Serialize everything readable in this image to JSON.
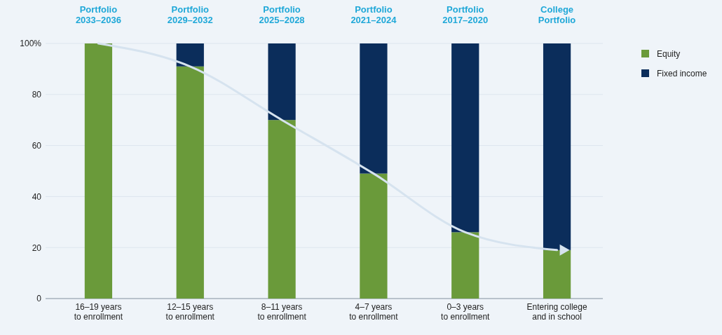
{
  "chart_data": {
    "type": "bar",
    "stacked": true,
    "categories": [
      "16–19 years\nto enrollment",
      "12–15 years\nto enrollment",
      "8–11 years\nto enrollment",
      "4–7 years\nto enrollment",
      "0–3 years\nto enrollment",
      "Entering college\nand in school"
    ],
    "series": [
      {
        "name": "Equity",
        "color": "#6a9a3a",
        "values": [
          100,
          91,
          70,
          49,
          26,
          19
        ]
      },
      {
        "name": "Fixed income",
        "color": "#0b2d5b",
        "values": [
          0,
          9,
          30,
          51,
          74,
          81
        ]
      },
      {
        "type": "line",
        "color": "#d6e3ef",
        "values": [
          100,
          91,
          70,
          49,
          26,
          19
        ]
      }
    ],
    "ylim": [
      0,
      100
    ],
    "yticks": [
      0,
      20,
      40,
      60,
      80,
      {
        "value": 100,
        "label": "100%"
      }
    ],
    "grid": "y",
    "legend": "top right",
    "annotations": [
      "Portfolio\n2033–2036",
      "Portfolio\n2029–2032",
      "Portfolio\n2025–2028",
      "Portfolio\n2021–2024",
      "Portfolio\n2017–2020",
      "College\nPortfolio"
    ]
  }
}
